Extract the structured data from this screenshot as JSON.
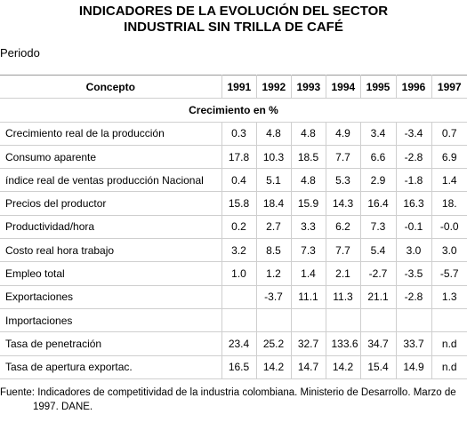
{
  "title": {
    "line1": "INDICADORES DE LA EVOLUCIÓN DEL SECTOR",
    "line2": "INDUSTRIAL SIN TRILLA DE CAFÉ"
  },
  "periodo_label": "Periodo",
  "table": {
    "header": [
      "Concepto",
      "1991",
      "1992",
      "1993",
      "1994",
      "1995",
      "1996",
      "1997"
    ],
    "section_label": "Crecimiento en %",
    "rows": [
      {
        "label": "Crecimiento real de la producción",
        "values": [
          "0.3",
          "4.8",
          "4.8",
          "4.9",
          "3.4",
          "-3.4",
          "0.7"
        ]
      },
      {
        "label": "Consumo aparente",
        "values": [
          "17.8",
          "10.3",
          "18.5",
          "7.7",
          "6.6",
          "-2.8",
          "6.9"
        ]
      },
      {
        "label": "índice real de ventas producción Nacional",
        "values": [
          "0.4",
          "5.1",
          "4.8",
          "5.3",
          "2.9",
          "-1.8",
          "1.4"
        ]
      },
      {
        "label": "Precios del productor",
        "values": [
          "15.8",
          "18.4",
          "15.9",
          "14.3",
          "16.4",
          "16.3",
          "18."
        ]
      },
      {
        "label": "Productividad/hora",
        "values": [
          "0.2",
          "2.7",
          "3.3",
          "6.2",
          "7.3",
          "-0.1",
          "-0.0"
        ]
      },
      {
        "label": "Costo real hora trabajo",
        "values": [
          "3.2",
          "8.5",
          "7.3",
          "7.7",
          "5.4",
          "3.0",
          "3.0"
        ]
      },
      {
        "label": "Empleo total",
        "values": [
          "1.0",
          "1.2",
          "1.4",
          "2.1",
          "-2.7",
          "-3.5",
          "-5.7"
        ]
      },
      {
        "label": "Exportaciones",
        "values": [
          "",
          "-3.7",
          "11.1",
          "11.3",
          "21.1",
          "-2.8",
          "1.3"
        ]
      },
      {
        "label": "Importaciones",
        "values": [
          "",
          "",
          "",
          "",
          "",
          "",
          ""
        ]
      },
      {
        "label": "Tasa de penetración",
        "values": [
          "23.4",
          "25.2",
          "32.7",
          "133.6",
          "34.7",
          "33.7",
          "n.d"
        ]
      },
      {
        "label": "Tasa de apertura exportac.",
        "values": [
          "16.5",
          "14.2",
          "14.7",
          "14.2",
          "15.4",
          "14.9",
          "n.d"
        ]
      }
    ]
  },
  "footer": {
    "line1": "Fuente: Indicadores de competitividad de la industria colombiana. Ministerio de Desarrollo. Marzo de",
    "line2": "1997. DANE."
  }
}
